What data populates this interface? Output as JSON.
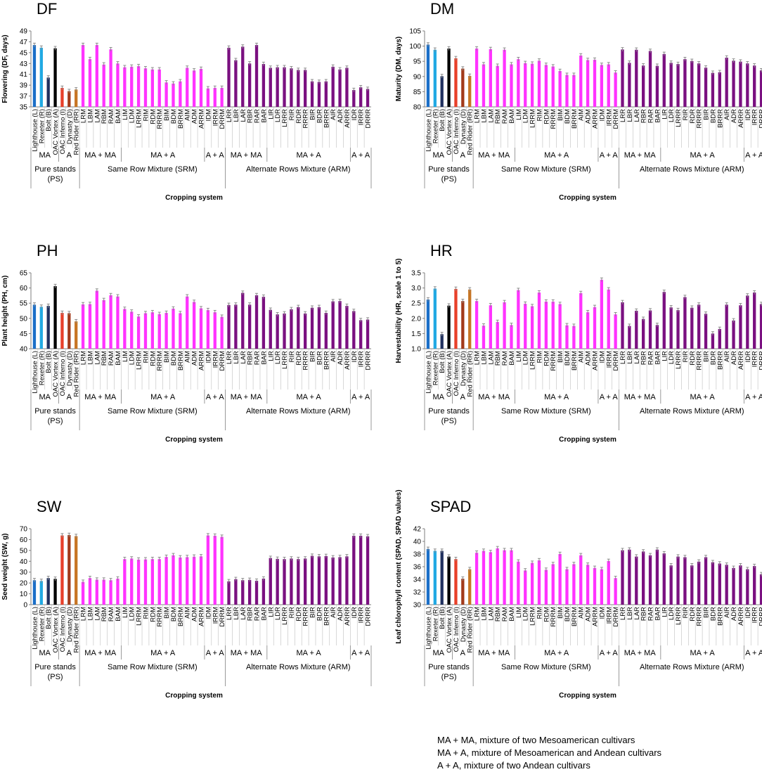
{
  "colors": {
    "lighthouse": "#1b6fc8",
    "rexeter": "#21a9e3",
    "bolt": "#1f2f5e",
    "oac_vortex": "#000000",
    "oac_inferno": "#e8402a",
    "dynasty": "#a23a1a",
    "red_rider": "#c77524",
    "srm": "#ff33ff",
    "arm": "#7a1080",
    "error": "#8c8c8c"
  },
  "labels": {
    "ps": [
      "Lighthouse (L)",
      "Rexeter (R)",
      "Bolt (B)",
      "OAC Vortex (A)",
      "OAC Inferno (I)",
      "Dynasty (D)",
      "Red Rider (RR)"
    ],
    "srm": [
      "LRM",
      "LBM",
      "LAM",
      "RBM",
      "RAM",
      "BAM",
      "LIM",
      "LDM",
      "LRRM",
      "RIM",
      "RDM",
      "RRRM",
      "BIM",
      "BDM",
      "BRRM",
      "AIM",
      "ADM",
      "ARRM",
      "IDM",
      "IRRM",
      "DRRM"
    ],
    "arm": [
      "LRR",
      "LBR",
      "LAR",
      "RBR",
      "RAR",
      "BAR",
      "LIR",
      "LDR",
      "LRRR",
      "RIR",
      "RDR",
      "RRRR",
      "BIR",
      "BDR",
      "BRRR",
      "AIR",
      "ADR",
      "ARRR",
      "IDR",
      "IRRR",
      "DRRR"
    ]
  },
  "groups": {
    "ps_sub": [
      "MA",
      "A"
    ],
    "mix_sub": [
      "MA + MA",
      "MA + A",
      "A + A"
    ],
    "main": [
      "Pure stands",
      "(PS)",
      "Same Row Mixture (SRM)",
      "Alternate Rows Mixture (ARM)"
    ]
  },
  "xlabel": "Cropping system",
  "chart_data": [
    {
      "type": "bar",
      "id": "DF",
      "title": "DF",
      "ylabel": "Flowering (DF, days)",
      "ylim": [
        35,
        49
      ],
      "ticks": [
        35,
        37,
        39,
        41,
        43,
        45,
        47,
        49
      ],
      "xlabel": "Cropping system",
      "ps": [
        46.4,
        45.9,
        40.4,
        45.8,
        38.5,
        37.9,
        38.2
      ],
      "srm": [
        46.4,
        43.8,
        46.4,
        42.8,
        45.6,
        43.0,
        42.3,
        42.4,
        42.5,
        42.1,
        41.9,
        41.9,
        39.5,
        39.3,
        39.7,
        42.2,
        41.7,
        42.0,
        38.4,
        38.5,
        38.5
      ],
      "arm": [
        45.9,
        43.6,
        46.1,
        43.0,
        46.4,
        42.9,
        42.2,
        42.3,
        42.3,
        42.1,
        41.8,
        41.8,
        39.7,
        39.6,
        39.7,
        42.4,
        41.9,
        42.2,
        38.1,
        38.6,
        38.3
      ]
    },
    {
      "type": "bar",
      "id": "DM",
      "title": "DM",
      "ylabel": "Maturity (DM, days)",
      "ylim": [
        80,
        105
      ],
      "ticks": [
        80,
        85,
        90,
        95,
        100,
        105
      ],
      "xlabel": "Cropping system",
      "ps": [
        100.5,
        98.8,
        90.1,
        99.2,
        96.0,
        92.6,
        90.2
      ],
      "srm": [
        99.2,
        94.0,
        99.0,
        93.5,
        98.8,
        94.0,
        95.7,
        94.4,
        94.2,
        95.2,
        93.8,
        93.3,
        91.8,
        90.5,
        90.5,
        96.9,
        95.4,
        95.5,
        93.8,
        94.0,
        91.3
      ],
      "arm": [
        98.9,
        94.5,
        98.8,
        93.6,
        98.4,
        93.5,
        97.4,
        94.5,
        94.1,
        95.7,
        95.1,
        94.3,
        92.9,
        91.2,
        91.4,
        96.2,
        95.2,
        94.9,
        94.3,
        93.6,
        92.0
      ]
    },
    {
      "type": "bar",
      "id": "PH",
      "title": "PH",
      "ylabel": "Plant height (PH, cm)",
      "ylim": [
        40,
        65
      ],
      "ticks": [
        40,
        45,
        50,
        55,
        60,
        65
      ],
      "xlabel": "Cropping system",
      "ps": [
        54.5,
        53.8,
        54.1,
        60.6,
        51.8,
        51.7,
        49.0
      ],
      "srm": [
        54.6,
        54.7,
        59.1,
        56.0,
        57.6,
        57.2,
        53.1,
        52.2,
        50.6,
        51.7,
        52.0,
        51.4,
        51.8,
        53.2,
        51.7,
        57.2,
        55.4,
        53.3,
        52.7,
        52.0,
        50.5
      ],
      "arm": [
        54.4,
        54.5,
        58.4,
        54.5,
        57.6,
        57.1,
        52.8,
        51.3,
        51.6,
        53.0,
        53.7,
        51.6,
        53.5,
        53.7,
        51.8,
        55.6,
        55.7,
        54.1,
        52.4,
        49.4,
        49.6
      ]
    },
    {
      "type": "bar",
      "id": "HR",
      "title": "HR",
      "ylabel": "Harvestability (HR, scale 1 to 5)",
      "ylim": [
        1.0,
        3.5
      ],
      "ticks": [
        1.0,
        1.5,
        2.0,
        2.5,
        3.0,
        3.5
      ],
      "xlabel": "Cropping system",
      "ps": [
        2.62,
        2.98,
        1.48,
        2.42,
        2.97,
        2.57,
        2.95
      ],
      "srm": [
        2.57,
        1.76,
        2.43,
        1.88,
        2.53,
        1.78,
        2.93,
        2.48,
        2.4,
        2.85,
        2.55,
        2.55,
        2.47,
        1.77,
        1.75,
        2.83,
        2.2,
        2.37,
        3.27,
        2.95,
        2.13
      ],
      "arm": [
        2.53,
        1.75,
        2.25,
        1.98,
        2.26,
        1.78,
        2.87,
        2.36,
        2.27,
        2.7,
        2.35,
        2.45,
        2.15,
        1.5,
        1.65,
        2.45,
        1.93,
        2.43,
        2.75,
        2.85,
        2.47
      ]
    },
    {
      "type": "bar",
      "id": "SW",
      "title": "SW",
      "ylabel": "Seed weight (SW, g)",
      "ylim": [
        0,
        70
      ],
      "ticks": [
        0,
        10,
        20,
        30,
        40,
        50,
        60,
        70
      ],
      "xlabel": "Cropping system",
      "ps": [
        22.5,
        21.8,
        24.5,
        23.8,
        63.8,
        64.2,
        63.2
      ],
      "srm": [
        21.0,
        24.5,
        23.0,
        23.0,
        22.5,
        24.0,
        42.0,
        42.5,
        41.5,
        41.7,
        42.0,
        42.0,
        44.0,
        45.5,
        43.5,
        43.8,
        44.2,
        44.5,
        63.8,
        63.5,
        62.5
      ],
      "arm": [
        21.5,
        23.5,
        22.5,
        22.8,
        22.0,
        24.0,
        43.0,
        42.2,
        42.0,
        42.5,
        42.0,
        42.5,
        45.0,
        44.5,
        44.8,
        43.5,
        43.8,
        44.5,
        63.5,
        63.5,
        63.0
      ]
    },
    {
      "type": "bar",
      "id": "SPAD",
      "title": "SPAD",
      "ylabel": "Leaf chlorophyll content (SPAD, SPAD values)",
      "ylim": [
        30,
        42
      ],
      "ticks": [
        30,
        32,
        34,
        36,
        38,
        40,
        42
      ],
      "xlabel": "Cropping system",
      "ps": [
        38.8,
        38.5,
        38.5,
        37.6,
        37.2,
        34.1,
        35.6
      ],
      "srm": [
        38.2,
        38.5,
        38.3,
        38.9,
        38.6,
        38.6,
        36.8,
        35.4,
        36.6,
        37.0,
        35.5,
        36.4,
        38.0,
        35.6,
        36.4,
        37.8,
        36.3,
        35.8,
        35.6,
        36.9,
        34.2
      ],
      "arm": [
        38.6,
        38.7,
        37.6,
        38.4,
        37.8,
        38.7,
        38.1,
        36.2,
        37.6,
        37.5,
        36.2,
        36.8,
        37.5,
        36.7,
        36.5,
        36.3,
        35.8,
        36.2,
        35.6,
        36.1,
        34.8
      ]
    }
  ],
  "footnote": [
    "MA + MA, mixture of two Mesoamerican cultivars",
    "MA + A, mixture of Mesoamerican and Andean cultivars",
    "A + A, mixture of two Andean cultivars"
  ]
}
